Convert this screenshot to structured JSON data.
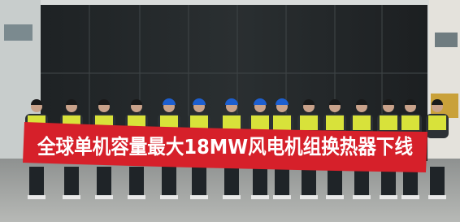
{
  "photo": {
    "banner_text": "全球单机容量最大18MW风电机组换热器下线"
  }
}
